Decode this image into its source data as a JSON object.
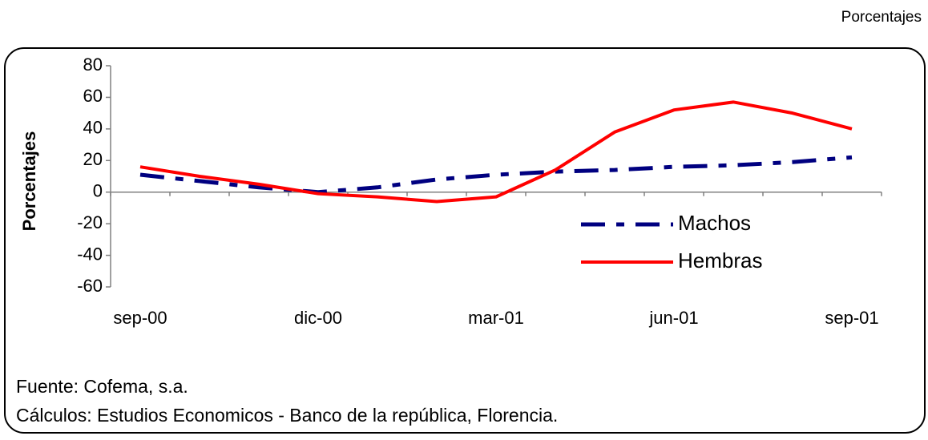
{
  "chart_data": {
    "type": "line",
    "unit_label": "Porcentajes",
    "ylabel": "Porcentajes",
    "categories": [
      "sep-00",
      null,
      null,
      "dic-00",
      null,
      null,
      "mar-01",
      null,
      null,
      "jun-01",
      null,
      null,
      "sep-01"
    ],
    "series": [
      {
        "name": "Machos",
        "color": "#000080",
        "values": [
          11,
          7,
          3,
          0,
          3,
          8,
          11,
          13,
          14,
          16,
          17,
          19,
          22
        ]
      },
      {
        "name": "Hembras",
        "color": "#ff0000",
        "values": [
          16,
          10,
          5,
          -1,
          -3,
          -6,
          -3,
          14,
          38,
          52,
          57,
          50,
          40
        ]
      }
    ],
    "ylim": [
      -60,
      80
    ],
    "yticks": [
      -60,
      -40,
      -20,
      0,
      20,
      40,
      60,
      80
    ],
    "grid": false,
    "source": "Fuente: Cofema, s.a.",
    "note": "Cálculos: Estudios Economicos - Banco de la república, Florencia."
  }
}
